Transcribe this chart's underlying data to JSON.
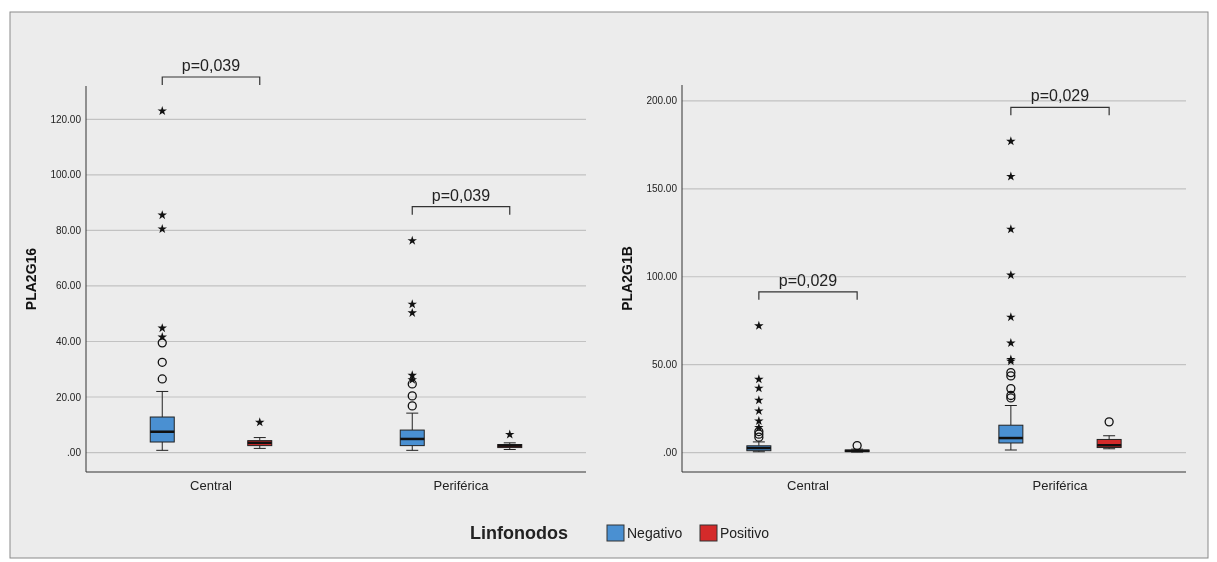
{
  "chart_data": [
    {
      "type": "box",
      "ylabel": "PLA2G16",
      "categories": [
        "Central",
        "Periférica"
      ],
      "ylim": [
        -7,
        132
      ],
      "yticks": [
        {
          "value": 0,
          "label": ".00"
        },
        {
          "value": 20,
          "label": "20.00"
        },
        {
          "value": 40,
          "label": "40.00"
        },
        {
          "value": 60,
          "label": "60.00"
        },
        {
          "value": 80,
          "label": "80.00"
        },
        {
          "value": 100,
          "label": "100.00"
        },
        {
          "value": 120,
          "label": "120.00"
        }
      ],
      "grid": "y",
      "legend": "bottom",
      "legend_title": "Linfonodos",
      "series": [
        {
          "name": "Negativo",
          "color": "#4a90d2",
          "boxes": [
            {
              "low": 0.8,
              "q1": 3.8,
              "median": 7.5,
              "q3": 12.8,
              "high": 22,
              "outliers": [
                26.5,
                32.5,
                39.5,
                41.6,
                44.8,
                80.5,
                85.5,
                123
              ]
            },
            {
              "low": 0.8,
              "q1": 2.5,
              "median": 4.9,
              "q3": 8.1,
              "high": 14.2,
              "outliers": [
                16.8,
                20.4,
                24.7,
                26.2,
                27.8,
                50.3,
                53.4,
                76.3
              ]
            }
          ]
        },
        {
          "name": "Positivo",
          "color": "#d42a2a",
          "boxes": [
            {
              "low": 1.5,
              "q1": 2.5,
              "median": 3.5,
              "q3": 4.3,
              "high": 5.4,
              "outliers": [
                10.9
              ]
            },
            {
              "low": 1.1,
              "q1": 1.8,
              "median": 2.5,
              "q3": 2.9,
              "high": 3.5,
              "outliers": [
                6.5
              ]
            }
          ]
        }
      ],
      "annotations": [
        "p=0,039",
        "p=0,039"
      ]
    },
    {
      "type": "box",
      "ylabel": "PLA2G1B",
      "categories": [
        "Central",
        "Periférica"
      ],
      "ylim": [
        -11,
        209
      ],
      "yticks": [
        {
          "value": 0,
          "label": ".00"
        },
        {
          "value": 50,
          "label": "50.00"
        },
        {
          "value": 100,
          "label": "100.00"
        },
        {
          "value": 150,
          "label": "150.00"
        },
        {
          "value": 200,
          "label": "200.00"
        }
      ],
      "grid": "y",
      "series": [
        {
          "color": "#4a90d2",
          "boxes": [
            {
              "low": 0.5,
              "q1": 1.1,
              "median": 2.6,
              "q3": 3.9,
              "high": 6.1,
              "outliers": [
                8.8,
                10.5,
                12,
                14.3,
                18,
                23.7,
                29.8,
                36.6,
                41.7,
                72.1
              ]
            },
            {
              "low": 1.5,
              "q1": 5.5,
              "median": 8.3,
              "q3": 15.6,
              "high": 26.8,
              "outliers": [
                31.1,
                32.5,
                36.4,
                43.6,
                45.5,
                52,
                53,
                62.3,
                77,
                100.9,
                127,
                157,
                177
              ]
            }
          ]
        },
        {
          "color": "#d42a2a",
          "boxes": [
            {
              "low": 0.3,
              "q1": 0.6,
              "median": 1,
              "q3": 1.5,
              "high": 2,
              "outliers": [
                4
              ]
            },
            {
              "low": 2.2,
              "q1": 2.9,
              "median": 4.2,
              "q3": 7.5,
              "high": 9.6,
              "outliers": [
                17.5
              ]
            }
          ]
        }
      ],
      "annotations": [
        "p=0,029",
        "p=0,029"
      ]
    }
  ]
}
